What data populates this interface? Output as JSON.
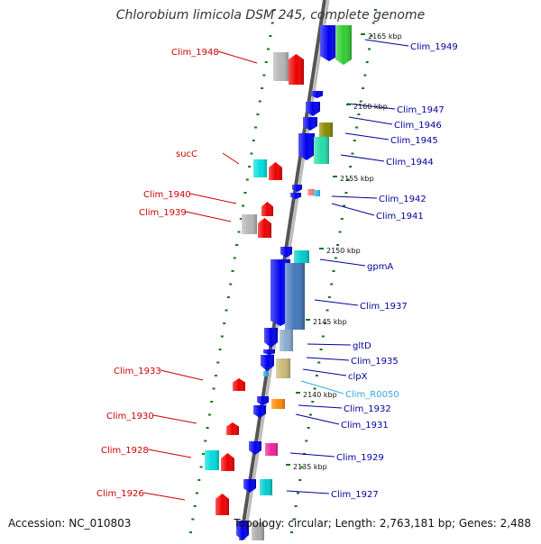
{
  "title": "Chlorobium limicola DSM 245, complete genome",
  "footer": {
    "accession": "Accession: NC_010803",
    "topology": "Topology: circular; Length: 2,763,181 bp; Genes: 2,488"
  },
  "colors": {
    "left_label": "#cc0000",
    "right_label": "#00009a",
    "rna_label": "#33aadd",
    "tick": "#117711",
    "backbone": "#8a8a8a"
  },
  "ruler": [
    {
      "label": "2165 kbp",
      "pos": 2165
    },
    {
      "label": "2160 kbp",
      "pos": 2160
    },
    {
      "label": "2155 kbp",
      "pos": 2155
    },
    {
      "label": "2150 kbp",
      "pos": 2150
    },
    {
      "label": "2145 kbp",
      "pos": 2145
    },
    {
      "label": "2140 kbp",
      "pos": 2140
    },
    {
      "label": "2135 kbp",
      "pos": 2135
    }
  ],
  "genes_left": [
    {
      "label": "Clim_1948"
    },
    {
      "label": "sucC"
    },
    {
      "label": "Clim_1940"
    },
    {
      "label": "Clim_1939"
    },
    {
      "label": "Clim_1933"
    },
    {
      "label": "Clim_1930"
    },
    {
      "label": "Clim_1928"
    },
    {
      "label": "Clim_1926"
    }
  ],
  "genes_right": [
    {
      "label": "Clim_1949"
    },
    {
      "label": "Clim_1947"
    },
    {
      "label": "Clim_1946"
    },
    {
      "label": "Clim_1945"
    },
    {
      "label": "Clim_1944"
    },
    {
      "label": "Clim_1942"
    },
    {
      "label": "Clim_1941"
    },
    {
      "label": "gpmA"
    },
    {
      "label": "Clim_1937"
    },
    {
      "label": "gltD"
    },
    {
      "label": "Clim_1935"
    },
    {
      "label": "clpX"
    },
    {
      "label": "Clim_R0050",
      "rna": true
    },
    {
      "label": "Clim_1932"
    },
    {
      "label": "Clim_1931"
    },
    {
      "label": "Clim_1929"
    },
    {
      "label": "Clim_1927"
    }
  ]
}
